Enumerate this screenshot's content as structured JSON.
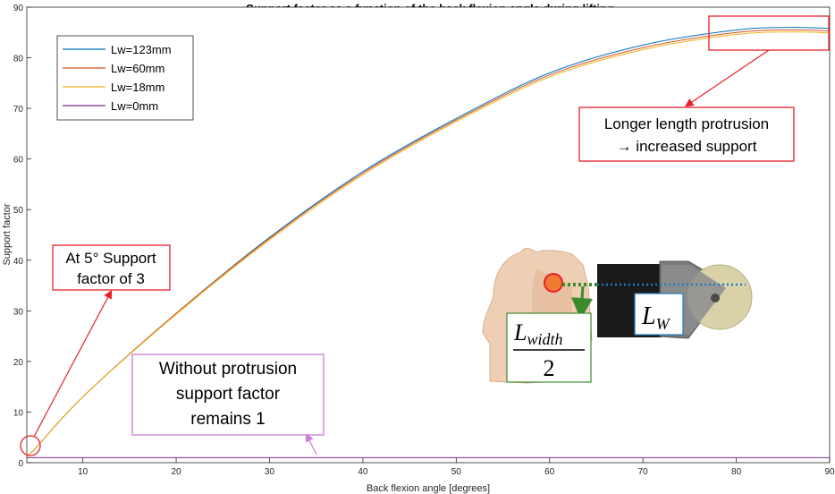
{
  "chart_data": {
    "type": "line",
    "title": "Support factor as a function of the back flexion angle during lifting",
    "xlabel": "Back flexion angle [degrees]",
    "ylabel": "Support factor",
    "xlim": [
      4,
      90
    ],
    "ylim": [
      0,
      90
    ],
    "xticks": [
      10,
      20,
      30,
      40,
      50,
      60,
      70,
      80,
      90
    ],
    "yticks": [
      0,
      10,
      20,
      30,
      40,
      50,
      60,
      70,
      80,
      90
    ],
    "grid": false,
    "legend_position": "top-left",
    "x": [
      4,
      5,
      10,
      20,
      30,
      40,
      50,
      60,
      70,
      80,
      86,
      90
    ],
    "series": [
      {
        "name": "Lw=123mm",
        "color": "#0072BD",
        "values": [
          1.3,
          3,
          13,
          29.5,
          44.5,
          57.5,
          68,
          77,
          82.5,
          85.5,
          86,
          85.8
        ]
      },
      {
        "name": "Lw=60mm",
        "color": "#D95319",
        "values": [
          1.3,
          3,
          13,
          29.5,
          44.3,
          57.2,
          67.7,
          76.6,
          82,
          85,
          85.5,
          85.3
        ]
      },
      {
        "name": "Lw=18mm",
        "color": "#EDB120",
        "values": [
          1.3,
          3,
          13,
          29.3,
          44,
          56.9,
          67.4,
          76.2,
          81.6,
          84.6,
          85.1,
          84.9
        ]
      },
      {
        "name": "Lw=0mm",
        "color": "#7E2F8E",
        "values": [
          1,
          1,
          1,
          1,
          1,
          1,
          1,
          1,
          1,
          1,
          1,
          1
        ]
      }
    ],
    "annotations": [
      {
        "lines": [
          "Longer length protrusion",
          "→ increased support"
        ],
        "color": "#E8202A"
      },
      {
        "lines": [
          "At 5° Support",
          "factor of 3"
        ],
        "color": "#E8202A"
      },
      {
        "lines": [
          "Without protrusion",
          "support factor",
          "remains 1"
        ],
        "color": "#C77DD6"
      }
    ]
  },
  "inset": {
    "lw_main": "L",
    "lw_sub": "W",
    "width_main": "L",
    "width_sub": "width",
    "width_den": "2"
  }
}
